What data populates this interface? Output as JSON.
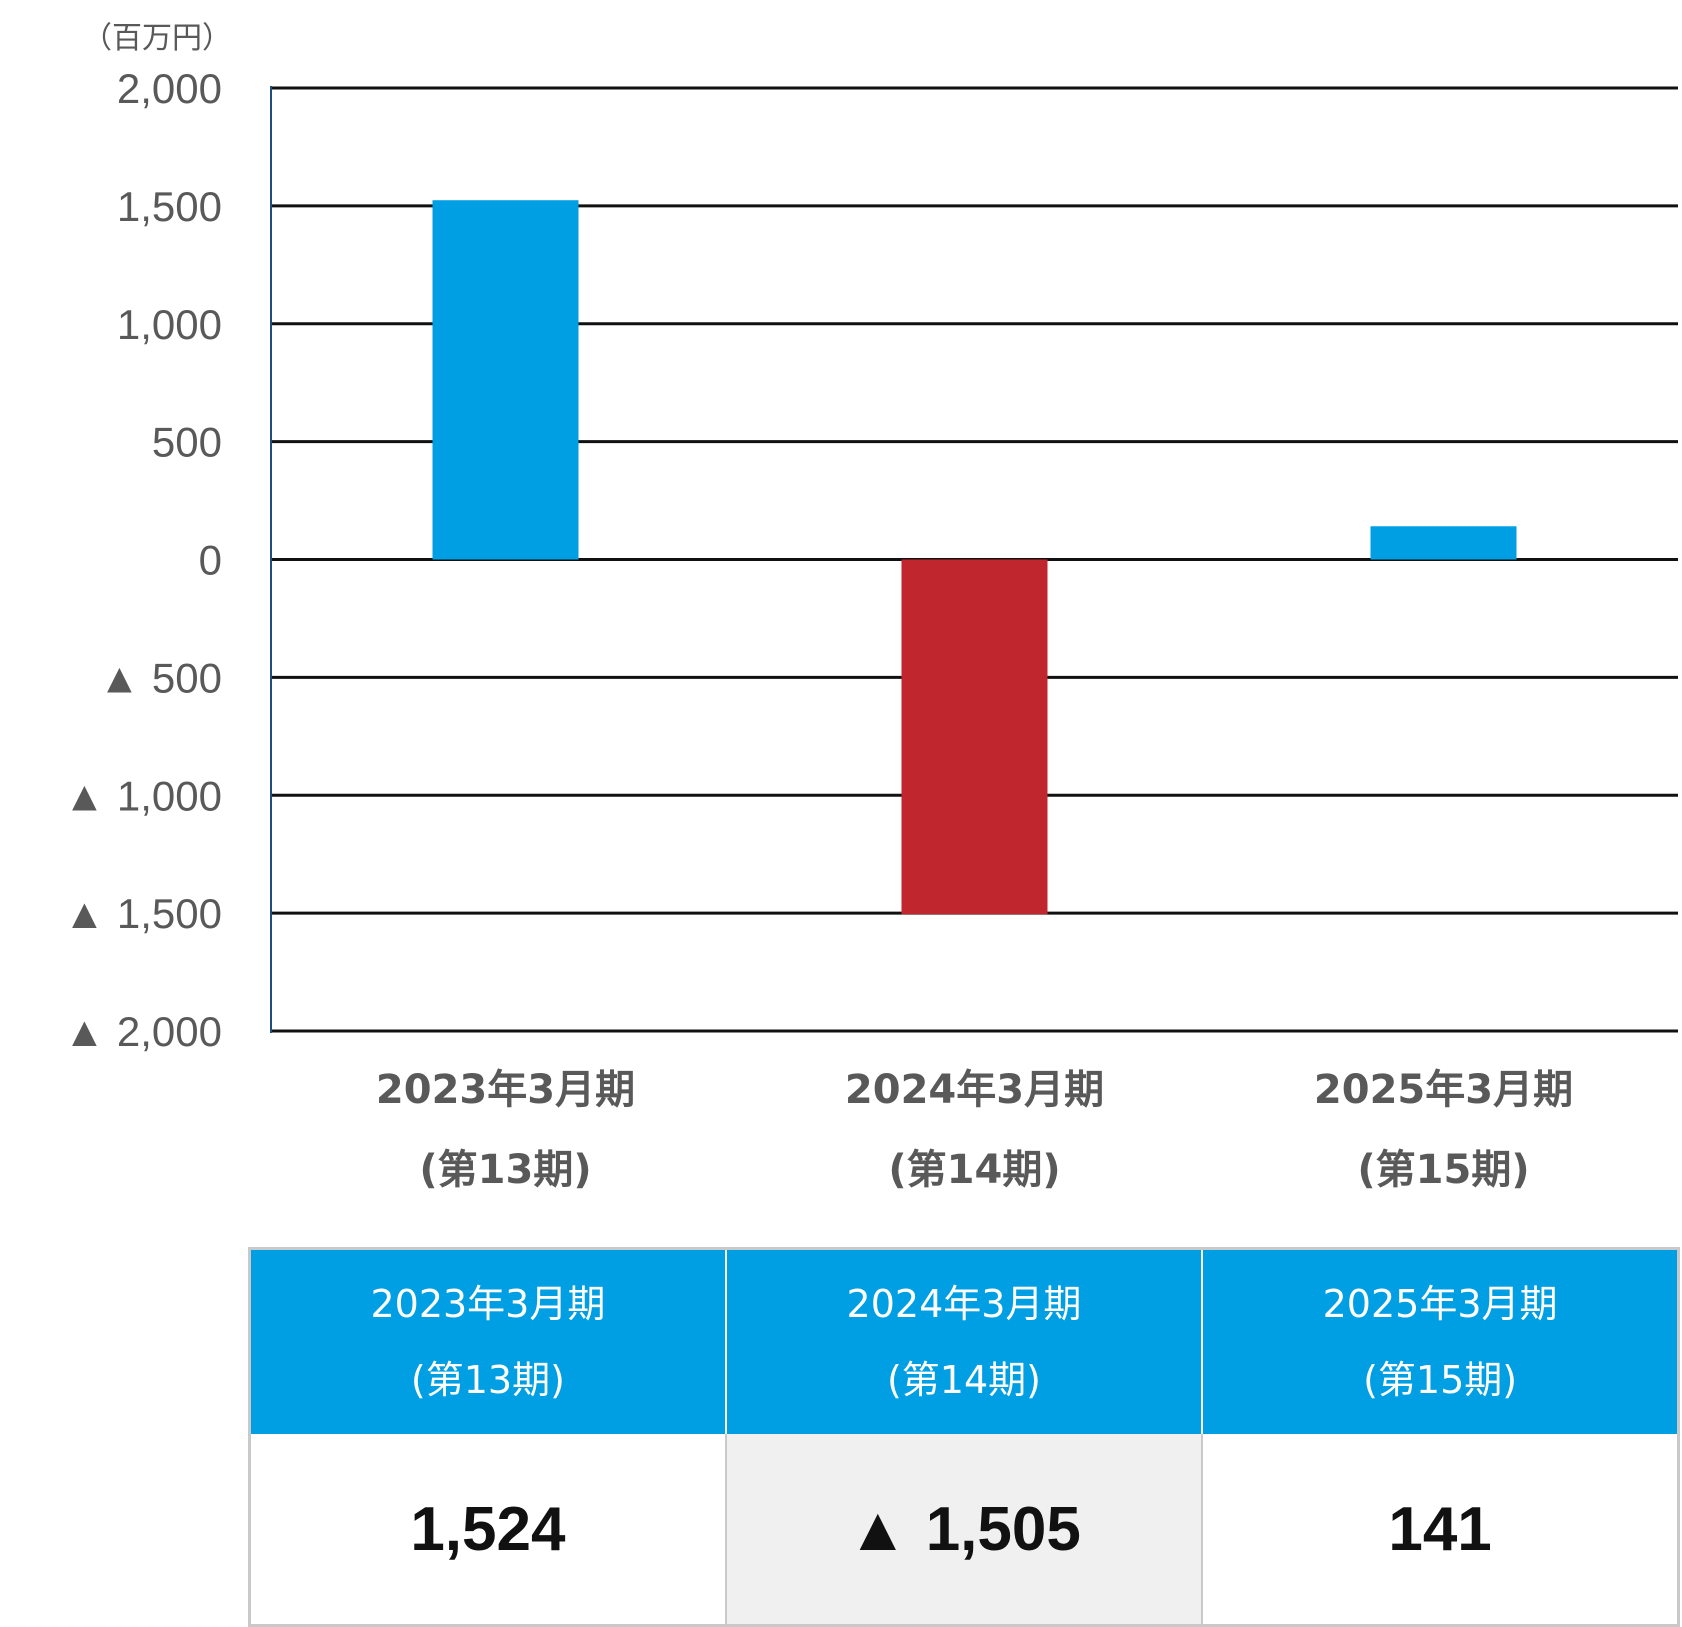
{
  "unit_label": "（百万円）",
  "chart_data": {
    "type": "bar",
    "categories": [
      "2023年3月期\n(第13期)",
      "2024年3月期\n(第14期)",
      "2025年3月期\n(第15期)"
    ],
    "values": [
      1524,
      -1505,
      141
    ],
    "ylim": [
      -2000,
      2000
    ],
    "yticks": [
      2000,
      1500,
      1000,
      500,
      0,
      -500,
      -1000,
      -1500,
      -2000
    ],
    "ytick_labels": [
      "2,000",
      "1,500",
      "1,000",
      "500",
      "0",
      "▲ 500",
      "▲ 1,000",
      "▲ 1,500",
      "▲ 2,000"
    ],
    "grid": true,
    "colors": {
      "positive": "#009fe3",
      "negative": "#c0262d"
    }
  },
  "table": {
    "header_color": "#009fe3",
    "columns": [
      {
        "line1": "2023年3月期",
        "line2": "(第13期)",
        "value": "1,524"
      },
      {
        "line1": "2024年3月期",
        "line2": "(第14期)",
        "value": "▲ 1,505"
      },
      {
        "line1": "2025年3月期",
        "line2": "(第15期)",
        "value": "141"
      }
    ]
  }
}
